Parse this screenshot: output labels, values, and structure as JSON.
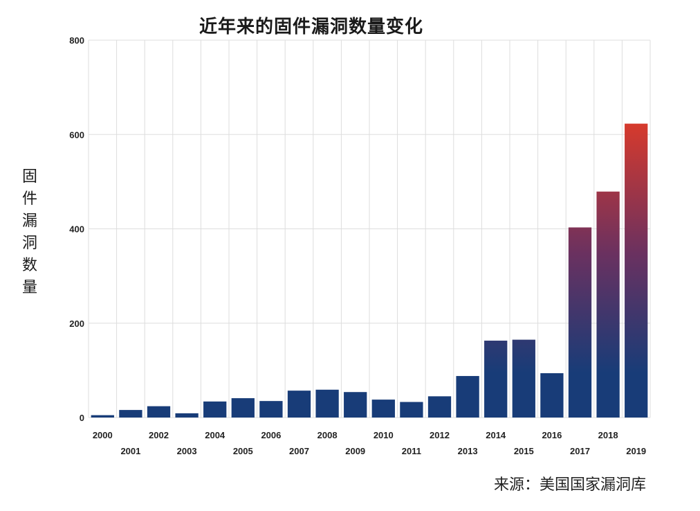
{
  "chart_data": {
    "type": "bar",
    "title": "近年来的固件漏洞数量变化",
    "xlabel": "",
    "ylabel": "固件漏洞数量",
    "source": "来源：美国国家漏洞库",
    "categories": [
      "2000",
      "2001",
      "2002",
      "2003",
      "2004",
      "2005",
      "2006",
      "2007",
      "2008",
      "2009",
      "2010",
      "2011",
      "2012",
      "2013",
      "2014",
      "2015",
      "2016",
      "2017",
      "2018",
      "2019"
    ],
    "values": [
      5,
      16,
      24,
      9,
      34,
      41,
      35,
      57,
      59,
      54,
      38,
      33,
      45,
      88,
      163,
      165,
      94,
      403,
      479,
      623
    ],
    "ylim": [
      0,
      800
    ],
    "yticks": [
      "0",
      "200",
      "400",
      "600",
      "800"
    ],
    "grid": true,
    "legend": "none",
    "colors": {
      "bar_low": "#183c78",
      "bar_high": "#d93a2b",
      "grid": "#dddddd"
    }
  }
}
